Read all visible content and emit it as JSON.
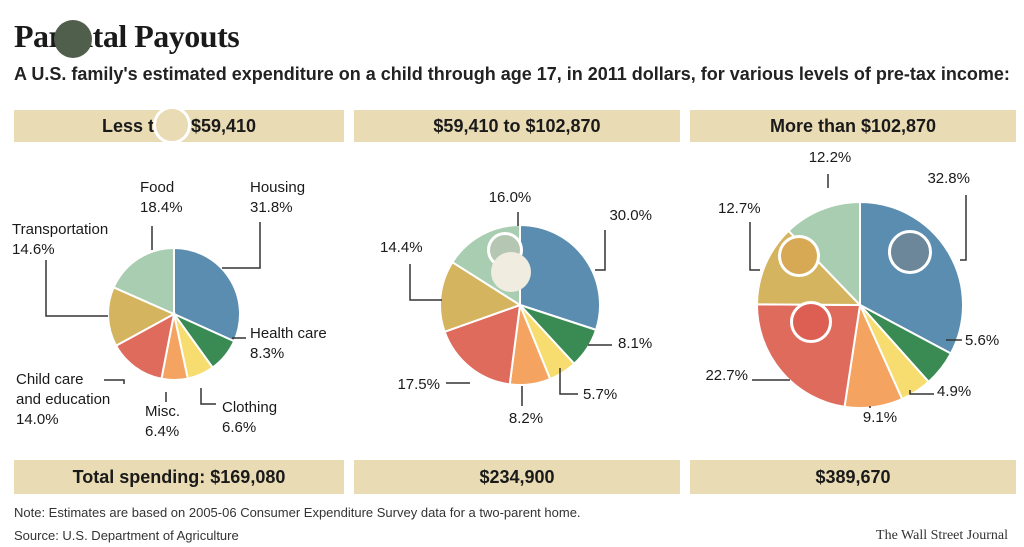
{
  "page": {
    "title": "Parental Payouts",
    "subtitle": "A U.S. family's estimated expenditure on a child through age 17, in 2011 dollars, for various levels of pre-tax income:",
    "note": "Note: Estimates are based on 2005-06 Consumer Expenditure Survey data for a two-parent home.",
    "source": "Source: U.S. Department of Agriculture",
    "credit": "The Wall Street Journal"
  },
  "colors": {
    "band": "#e9dbb4",
    "Housing": "#5b8db0",
    "Health care": "#3a8a53",
    "Clothing": "#f7dc6f",
    "Misc.": "#f4a460",
    "Child care and education": "#df6b5d",
    "Transportation": "#d4b45e",
    "Food": "#a9cdb0"
  },
  "chart_data": [
    {
      "type": "pie",
      "header": "Less than $59,410",
      "footer": "Total spending: $169,080",
      "categories": [
        "Housing",
        "Health care",
        "Clothing",
        "Misc.",
        "Child care and education",
        "Transportation",
        "Food"
      ],
      "values": [
        31.8,
        8.3,
        6.6,
        6.4,
        14.0,
        14.6,
        18.4
      ],
      "labels": [
        "Housing\n31.8%",
        "Health care\n8.3%",
        "Clothing\n6.6%",
        "Misc.\n6.4%",
        "Child care\nand education\n14.0%",
        "Transportation\n14.6%",
        "Food\n18.4%"
      ]
    },
    {
      "type": "pie",
      "header": "$59,410 to $102,870",
      "footer": "$234,900",
      "categories": [
        "Housing",
        "Health care",
        "Clothing",
        "Misc.",
        "Child care and education",
        "Transportation",
        "Food"
      ],
      "values": [
        30.0,
        8.1,
        5.7,
        8.2,
        17.5,
        14.4,
        16.0
      ],
      "labels": [
        "30.0%",
        "8.1%",
        "5.7%",
        "8.2%",
        "17.5%",
        "14.4%",
        "16.0%"
      ]
    },
    {
      "type": "pie",
      "header": "More than $102,870",
      "footer": "$389,670",
      "categories": [
        "Housing",
        "Health care",
        "Clothing",
        "Misc.",
        "Child care and education",
        "Transportation",
        "Food"
      ],
      "values": [
        32.8,
        5.6,
        4.9,
        9.1,
        22.7,
        12.7,
        12.2
      ],
      "labels": [
        "32.8%",
        "5.6%",
        "4.9%",
        "9.1%",
        "22.7%",
        "12.7%",
        "12.2%"
      ]
    }
  ]
}
